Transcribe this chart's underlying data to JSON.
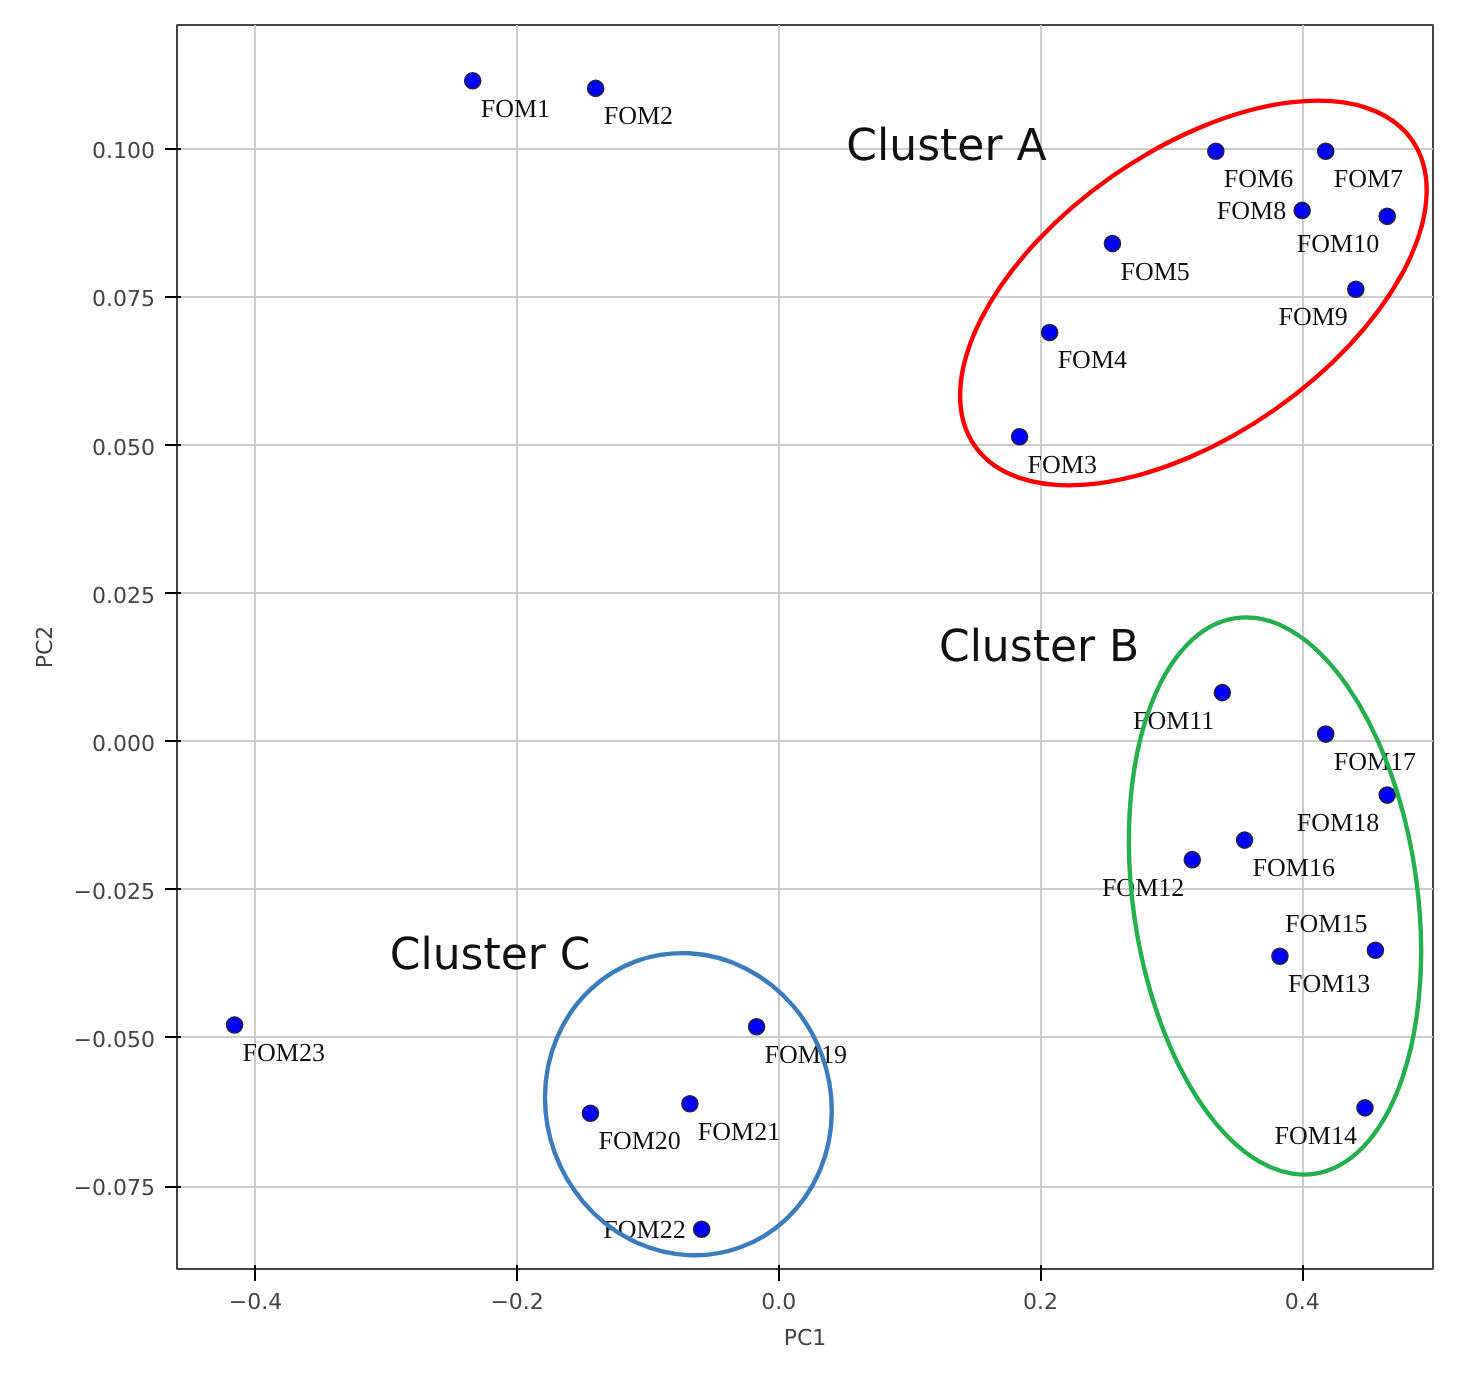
{
  "chart_data": {
    "type": "scatter",
    "xlabel": "PC1",
    "ylabel": "PC2",
    "xlim": [
      -0.46,
      0.5
    ],
    "ylim": [
      -0.089,
      0.121
    ],
    "xticks": [
      {
        "value": -0.4,
        "label": "−0.4"
      },
      {
        "value": -0.2,
        "label": "−0.2"
      },
      {
        "value": 0,
        "label": "0.0"
      },
      {
        "value": 0.2,
        "label": "0.2"
      },
      {
        "value": 0.4,
        "label": "0.4"
      }
    ],
    "yticks": [
      {
        "value": -0.075,
        "label": "−0.075"
      },
      {
        "value": -0.05,
        "label": "−0.050"
      },
      {
        "value": -0.025,
        "label": "−0.025"
      },
      {
        "value": 0,
        "label": "0.000"
      },
      {
        "value": 0.025,
        "label": "0.025"
      },
      {
        "value": 0.05,
        "label": "0.050"
      },
      {
        "value": 0.075,
        "label": "0.075"
      },
      {
        "value": 0.1,
        "label": "0.100"
      }
    ],
    "grid": true,
    "marker": "circle",
    "series": [
      {
        "color": "#0000ff",
        "x": [
          -0.234,
          -0.14,
          0.184,
          0.207,
          0.255,
          0.334,
          0.418,
          0.4,
          0.441,
          0.465,
          0.339,
          0.316,
          0.383,
          0.448,
          0.456,
          0.356,
          0.418,
          0.465,
          -0.017,
          -0.144,
          -0.068,
          -0.059,
          -0.416
        ],
        "values": [
          0.1116,
          0.1103,
          0.0515,
          0.0691,
          0.0841,
          0.0997,
          0.0997,
          0.0897,
          0.0764,
          0.0887,
          0.0083,
          -0.0199,
          -0.0362,
          -0.0618,
          -0.0352,
          -0.0166,
          0.0013,
          -0.009,
          -0.0481,
          -0.0627,
          -0.0611,
          -0.0823,
          -0.0478
        ]
      }
    ],
    "annotations": [
      {
        "text": "FOM1",
        "x": -0.234,
        "y": 0.1116
      },
      {
        "text": "FOM2",
        "x": -0.14,
        "y": 0.1103
      },
      {
        "text": "FOM3",
        "x": 0.184,
        "y": 0.0515
      },
      {
        "text": "FOM4",
        "x": 0.207,
        "y": 0.0691
      },
      {
        "text": "FOM5",
        "x": 0.255,
        "y": 0.0841
      },
      {
        "text": "FOM6",
        "x": 0.334,
        "y": 0.0997
      },
      {
        "text": "FOM7",
        "x": 0.418,
        "y": 0.0997
      },
      {
        "text": "FOM8",
        "x": 0.4,
        "y": 0.0897
      },
      {
        "text": "FOM9",
        "x": 0.441,
        "y": 0.0764
      },
      {
        "text": "FOM10",
        "x": 0.465,
        "y": 0.0887
      },
      {
        "text": "FOM11",
        "x": 0.339,
        "y": 0.0083
      },
      {
        "text": "FOM12",
        "x": 0.316,
        "y": -0.0199
      },
      {
        "text": "FOM13",
        "x": 0.383,
        "y": -0.0362
      },
      {
        "text": "FOM14",
        "x": 0.448,
        "y": -0.0618
      },
      {
        "text": "FOM15",
        "x": 0.456,
        "y": -0.0352
      },
      {
        "text": "FOM16",
        "x": 0.356,
        "y": -0.0166
      },
      {
        "text": "FOM17",
        "x": 0.418,
        "y": 0.0013
      },
      {
        "text": "FOM18",
        "x": 0.465,
        "y": -0.009
      },
      {
        "text": "FOM19",
        "x": -0.017,
        "y": -0.0481
      },
      {
        "text": "FOM20",
        "x": -0.144,
        "y": -0.0627
      },
      {
        "text": "FOM21",
        "x": -0.068,
        "y": -0.0611
      },
      {
        "text": "FOM22",
        "x": -0.059,
        "y": -0.0823
      },
      {
        "text": "FOM23",
        "x": -0.416,
        "y": -0.0478
      },
      "Cluster A",
      "Cluster B",
      "Cluster C"
    ]
  }
}
